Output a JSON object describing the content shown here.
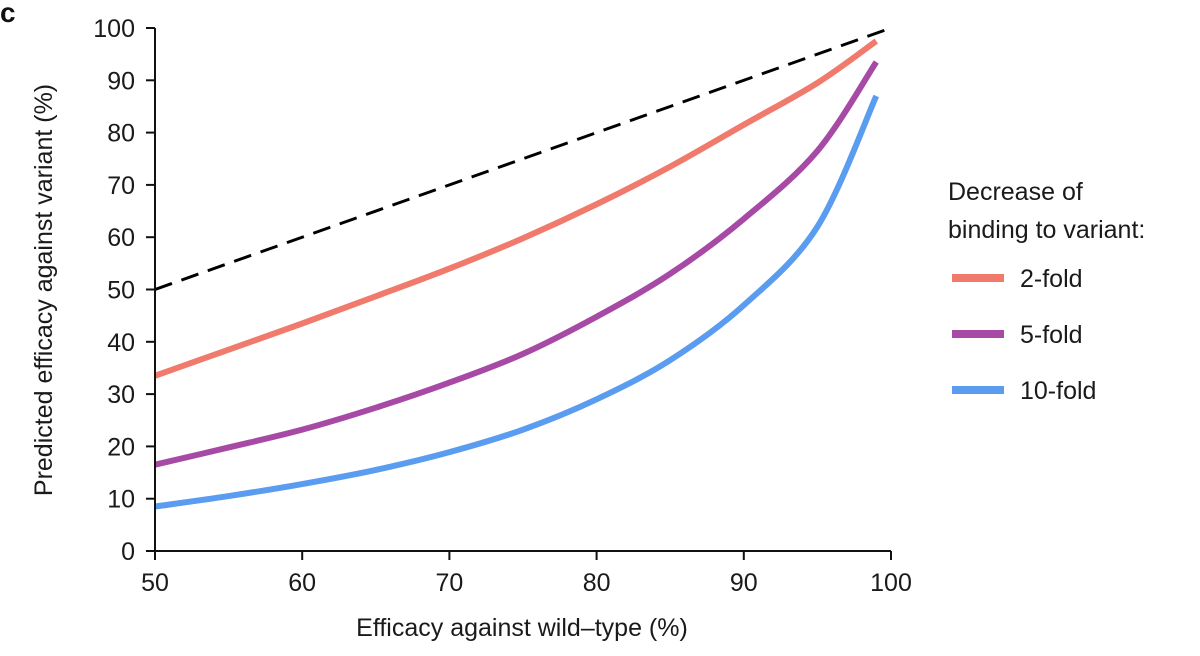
{
  "panel_label": "c",
  "chart_data": {
    "type": "line",
    "xlabel": "Efficacy against wild–type (%)",
    "ylabel": "Predicted efficacy against variant (%)",
    "xlim": [
      50,
      100
    ],
    "ylim": [
      0,
      100
    ],
    "xticks": [
      50,
      60,
      70,
      80,
      90,
      100
    ],
    "yticks": [
      0,
      10,
      20,
      30,
      40,
      50,
      60,
      70,
      80,
      90,
      100
    ],
    "grid": false,
    "legend": {
      "title_lines": [
        "Decrease of",
        "binding to variant:"
      ],
      "placement": "right"
    },
    "reference_line": {
      "style": "dashed",
      "color": "#000000",
      "x": [
        50,
        100
      ],
      "y": [
        50,
        100
      ]
    },
    "series": [
      {
        "name": "2-fold",
        "color": "#f07a6c",
        "x": [
          50,
          55,
          60,
          65,
          70,
          75,
          80,
          85,
          90,
          95,
          99
        ],
        "y": [
          33.5,
          38.5,
          43.5,
          48.7,
          54,
          59.8,
          66.3,
          73.5,
          81.5,
          89.5,
          97.5
        ]
      },
      {
        "name": "5-fold",
        "color": "#a64aa6",
        "x": [
          50,
          55,
          60,
          65,
          70,
          75,
          80,
          85,
          90,
          95,
          99
        ],
        "y": [
          16.5,
          19.8,
          23.2,
          27.4,
          32.2,
          37.7,
          44.8,
          53,
          63.5,
          76.5,
          93.5
        ]
      },
      {
        "name": "10-fold",
        "color": "#5a9cf0",
        "x": [
          50,
          55,
          60,
          65,
          70,
          75,
          80,
          85,
          90,
          95,
          99
        ],
        "y": [
          8.5,
          10.5,
          12.8,
          15.5,
          18.9,
          23.2,
          29,
          36.5,
          47,
          62,
          87
        ]
      }
    ]
  }
}
